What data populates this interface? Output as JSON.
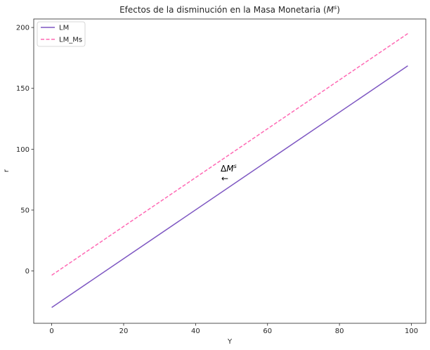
{
  "chart_data": {
    "type": "line",
    "title": "Efectos de la disminución en la Masa Monetaria",
    "title_math": "M",
    "title_math_sup": "s",
    "xlabel": "Y",
    "ylabel": "r",
    "xlim": [
      -5,
      104
    ],
    "ylim": [
      -43,
      207
    ],
    "xticks": [
      0,
      20,
      40,
      60,
      80,
      100
    ],
    "yticks": [
      0,
      50,
      100,
      150,
      200
    ],
    "grid": false,
    "legend_position": "top-left",
    "series": [
      {
        "name": "LM",
        "color": "#7e57c2",
        "style": "solid",
        "x": [
          0,
          99
        ],
        "y": [
          -30,
          168.5
        ]
      },
      {
        "name": "LM_Ms",
        "color": "#ff69b4",
        "style": "dashed",
        "x": [
          0,
          99
        ],
        "y": [
          -3.5,
          195
        ]
      }
    ],
    "annotation": {
      "delta": "Δ",
      "math": "M",
      "sup": "s",
      "arrow": "←",
      "x": 48,
      "y": 80
    }
  }
}
